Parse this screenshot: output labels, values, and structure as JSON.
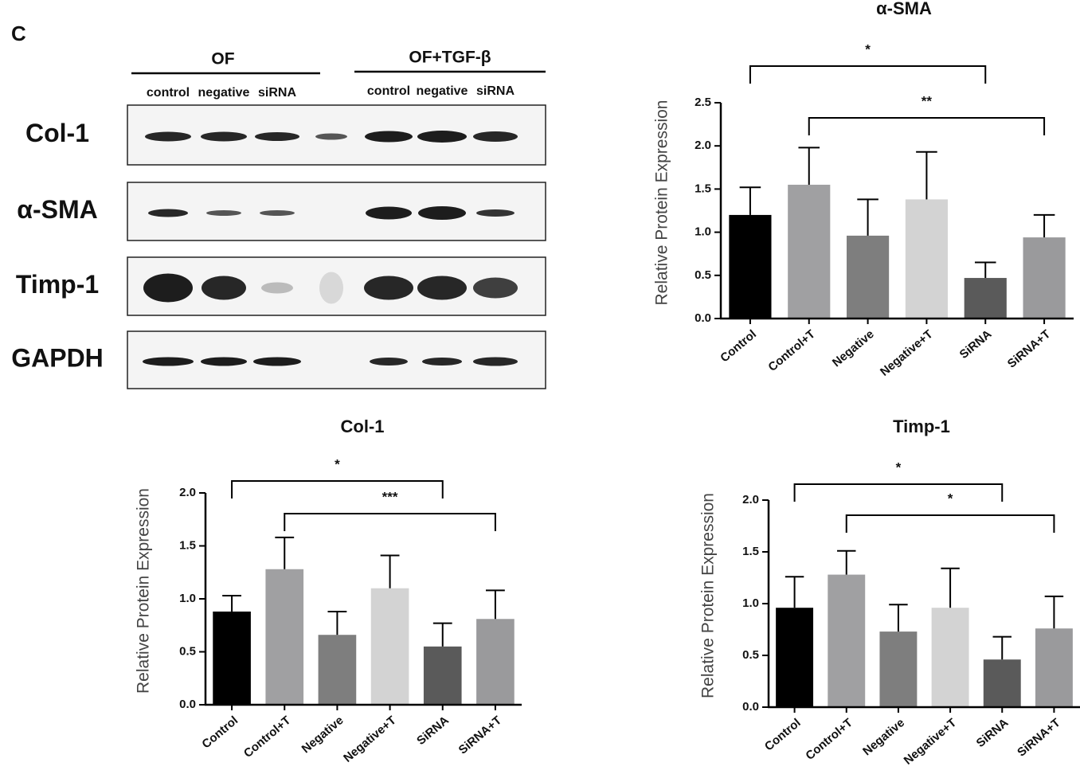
{
  "panel_label": "C",
  "blot": {
    "groups": [
      "OF",
      "OF+TGF-β"
    ],
    "lanes": [
      [
        "control",
        "negative",
        "siRNA"
      ],
      [
        "control",
        "negative",
        "siRNA"
      ]
    ],
    "proteins": [
      "Col-1",
      "α-SMA",
      "Timp-1",
      "GAPDH"
    ]
  },
  "chart_data": [
    {
      "type": "bar",
      "title": "α-SMA",
      "y_label": "Relative Protein Expression",
      "categories": [
        "Control",
        "Control+T",
        "Negative",
        "Negative+T",
        "SiRNA",
        "SiRNA+T"
      ],
      "values": [
        1.2,
        1.55,
        0.96,
        1.38,
        0.47,
        0.94
      ],
      "errors": [
        0.32,
        0.43,
        0.42,
        0.55,
        0.18,
        0.26
      ],
      "colors": [
        "#000000",
        "#a0a0a2",
        "#7e7e7e",
        "#d3d3d3",
        "#5a5a5a",
        "#9a9a9c"
      ],
      "ylim": [
        0,
        2.5
      ],
      "yticks": [
        {
          "value": 0,
          "label": "0.0"
        },
        0.5,
        {
          "value": 1,
          "label": "1.0"
        },
        1.5,
        {
          "value": 2,
          "label": "2.0"
        },
        2.5
      ],
      "significance": [
        {
          "from": 0,
          "to": 4,
          "label": "*"
        },
        {
          "from": 1,
          "to": 5,
          "label": "**"
        }
      ]
    },
    {
      "type": "bar",
      "title": "Col-1",
      "y_label": "Relative Protein Expression",
      "categories": [
        "Control",
        "Control+T",
        "Negative",
        "Negative+T",
        "SiRNA",
        "SiRNA+T"
      ],
      "values": [
        0.88,
        1.28,
        0.66,
        1.1,
        0.55,
        0.81
      ],
      "errors": [
        0.15,
        0.3,
        0.22,
        0.31,
        0.22,
        0.27
      ],
      "colors": [
        "#000000",
        "#a0a0a2",
        "#7e7e7e",
        "#d3d3d3",
        "#5a5a5a",
        "#9a9a9c"
      ],
      "ylim": [
        0,
        2
      ],
      "yticks": [
        {
          "value": 0,
          "label": "0.0"
        },
        0.5,
        {
          "value": 1,
          "label": "1.0"
        },
        1.5,
        {
          "value": 2,
          "label": "2.0"
        }
      ],
      "significance": [
        {
          "from": 0,
          "to": 4,
          "label": "*"
        },
        {
          "from": 1,
          "to": 5,
          "label": "***"
        }
      ]
    },
    {
      "type": "bar",
      "title": "Timp-1",
      "y_label": "Relative Protein Expression",
      "categories": [
        "Control",
        "Control+T",
        "Negative",
        "Negative+T",
        "SiRNA",
        "SiRNA+T"
      ],
      "values": [
        0.96,
        1.28,
        0.73,
        0.96,
        0.46,
        0.76
      ],
      "errors": [
        0.3,
        0.23,
        0.26,
        0.38,
        0.22,
        0.31
      ],
      "colors": [
        "#000000",
        "#a0a0a2",
        "#7e7e7e",
        "#d3d3d3",
        "#5a5a5a",
        "#9a9a9c"
      ],
      "ylim": [
        0,
        2
      ],
      "yticks": [
        {
          "value": 0,
          "label": "0.0"
        },
        0.5,
        {
          "value": 1,
          "label": "1.0"
        },
        1.5,
        {
          "value": 2,
          "label": "2.0"
        }
      ],
      "significance": [
        {
          "from": 0,
          "to": 4,
          "label": "*"
        },
        {
          "from": 1,
          "to": 5,
          "label": "*"
        }
      ]
    }
  ]
}
